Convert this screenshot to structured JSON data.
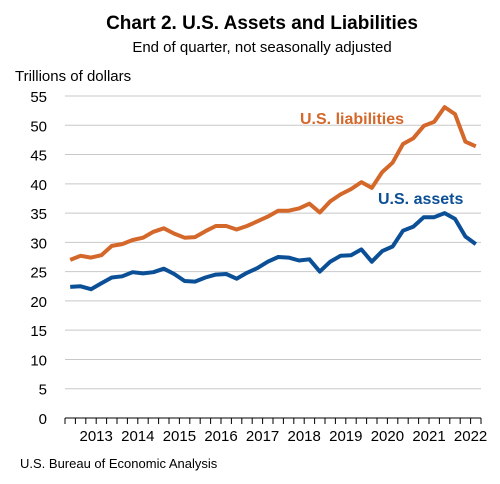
{
  "chart_data": {
    "type": "line",
    "title": "Chart 2. U.S. Assets and Liabilities",
    "subtitle": "End of quarter, not seasonally adjusted",
    "ylabel": "Trillions of dollars",
    "xlabel": "",
    "ylim": [
      0,
      55
    ],
    "yticks": [
      0,
      5,
      10,
      15,
      20,
      25,
      30,
      35,
      40,
      45,
      50,
      55
    ],
    "x_start_quarter": "2012Q4",
    "x_end_quarter": "2022Q2",
    "year_labels": [
      "2013",
      "2014",
      "2015",
      "2016",
      "2017",
      "2018",
      "2019",
      "2020",
      "2021",
      "2022"
    ],
    "grid": "horizontal",
    "series": [
      {
        "name": "U.S. liabilities",
        "color": "#d4672a",
        "values": [
          27.0,
          27.7,
          27.4,
          27.8,
          29.4,
          29.7,
          30.4,
          30.8,
          31.8,
          32.4,
          31.5,
          30.8,
          30.9,
          31.9,
          32.8,
          32.8,
          32.2,
          32.8,
          33.6,
          34.4,
          35.4,
          35.4,
          35.8,
          36.6,
          35.1,
          37.0,
          38.2,
          39.1,
          40.3,
          39.3,
          42.0,
          43.6,
          46.8,
          47.8,
          49.9,
          50.6,
          53.1,
          51.9,
          47.2,
          46.4
        ]
      },
      {
        "name": "U.S. assets",
        "color": "#0b4f96",
        "values": [
          22.4,
          22.5,
          22.0,
          23.0,
          24.0,
          24.2,
          24.9,
          24.7,
          24.9,
          25.5,
          24.6,
          23.4,
          23.3,
          24.0,
          24.5,
          24.6,
          23.8,
          24.8,
          25.6,
          26.7,
          27.5,
          27.4,
          26.9,
          27.1,
          25.0,
          26.7,
          27.7,
          27.8,
          28.8,
          26.7,
          28.5,
          29.3,
          32.0,
          32.7,
          34.3,
          34.3,
          35.0,
          34.0,
          31.0,
          29.7
        ]
      }
    ]
  },
  "source": "U.S. Bureau of Economic Analysis"
}
